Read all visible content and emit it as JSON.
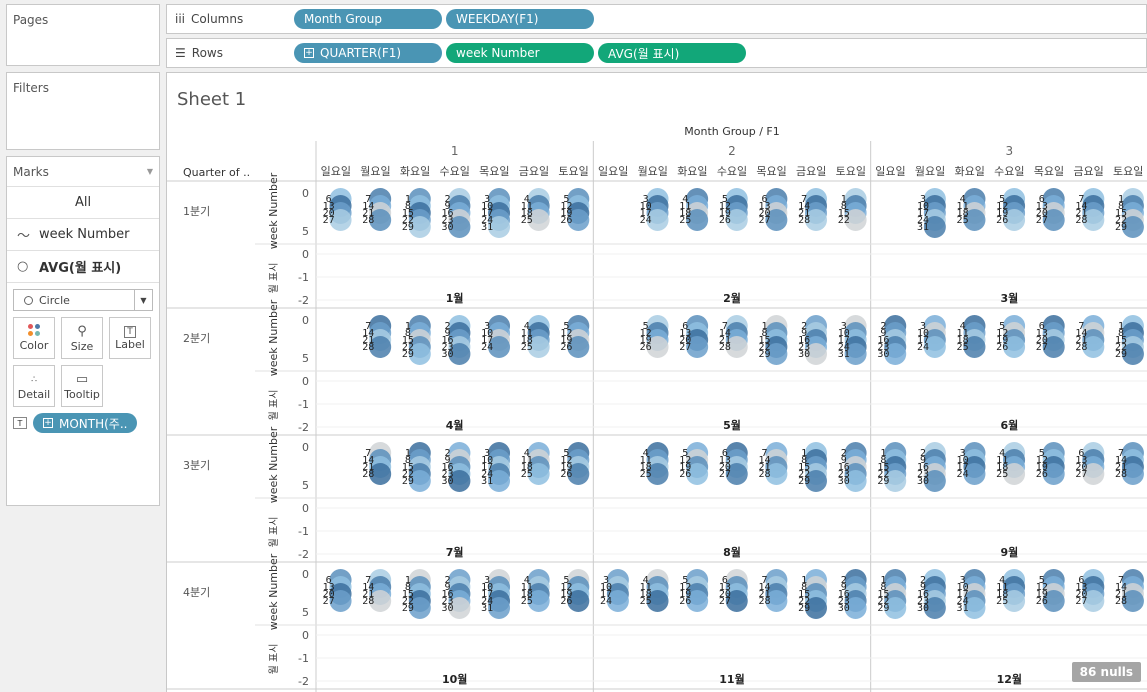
{
  "side": {
    "pages_label": "Pages",
    "filters_label": "Filters",
    "marks_label": "Marks",
    "marks_all": "All",
    "marks_series1": "week Number",
    "marks_series2": "AVG(월 표시)",
    "mark_type": "Circle",
    "buttons": {
      "color": "Color",
      "size": "Size",
      "label": "Label",
      "detail": "Detail",
      "tooltip": "Tooltip"
    },
    "month_pill": "MONTH(주.."
  },
  "shelves": {
    "columns_label": "Columns",
    "rows_label": "Rows",
    "columns": [
      "Month Group",
      "WEEKDAY(F1)"
    ],
    "rows": [
      "QUARTER(F1)",
      "week Number",
      "AVG(월 표시)"
    ]
  },
  "sheet": {
    "title": "Sheet 1",
    "col_header": "Month Group / F1",
    "row_header": "Quarter of ..",
    "groups": [
      "1",
      "2",
      "3"
    ],
    "weekdays": [
      "일요일",
      "월요일",
      "화요일",
      "수요일",
      "목요일",
      "금요일",
      "토요일"
    ],
    "quarters": [
      "1분기",
      "2분기",
      "3분기",
      "4분기"
    ],
    "axis1_title": "week Number",
    "axis2_title": "월 표시",
    "axis1_ticks": [
      "0",
      "5"
    ],
    "axis2_ticks": [
      "0",
      "-1",
      "-2"
    ],
    "months": [
      [
        "1월",
        "2월",
        "3월"
      ],
      [
        "4월",
        "5월",
        "6월"
      ],
      [
        "7월",
        "8월",
        "9월"
      ],
      [
        "10월",
        "11월",
        "12월"
      ]
    ],
    "nulls": "86 nulls"
  },
  "chart_data": {
    "type": "scatter",
    "title": "Sheet 1",
    "xlabel": "Month Group / F1",
    "ylabel": "week Number",
    "cells": [
      {
        "q": 0,
        "g": 0,
        "days": [
          [
            6,
            13,
            20,
            27
          ],
          [
            7,
            14,
            21,
            28
          ],
          [
            1,
            8,
            15,
            22,
            29
          ],
          [
            2,
            9,
            16,
            23,
            30
          ],
          [
            3,
            10,
            17,
            24,
            31
          ],
          [
            4,
            11,
            18,
            25
          ],
          [
            5,
            12,
            19,
            26
          ]
        ]
      },
      {
        "q": 0,
        "g": 1,
        "days": [
          [],
          [
            3,
            10,
            17,
            24
          ],
          [
            4,
            11,
            18,
            25
          ],
          [
            5,
            12,
            19,
            26
          ],
          [
            6,
            13,
            20,
            27
          ],
          [
            7,
            14,
            21,
            28
          ],
          [
            1,
            8,
            15,
            22
          ]
        ]
      },
      {
        "q": 0,
        "g": 2,
        "days": [
          [],
          [
            3,
            10,
            17,
            24,
            31
          ],
          [
            4,
            11,
            18,
            25
          ],
          [
            5,
            12,
            19,
            26
          ],
          [
            6,
            13,
            20,
            27
          ],
          [
            7,
            14,
            21,
            28
          ],
          [
            1,
            8,
            15,
            22,
            29
          ]
        ]
      },
      {
        "q": 1,
        "g": 0,
        "days": [
          [],
          [
            7,
            14,
            21,
            28
          ],
          [
            1,
            8,
            15,
            22,
            29
          ],
          [
            2,
            9,
            16,
            23,
            30
          ],
          [
            3,
            10,
            17,
            24
          ],
          [
            4,
            11,
            18,
            25
          ],
          [
            5,
            12,
            19,
            26
          ]
        ]
      },
      {
        "q": 1,
        "g": 1,
        "days": [
          [],
          [
            5,
            12,
            19,
            26
          ],
          [
            6,
            13,
            20,
            27
          ],
          [
            7,
            14,
            21,
            28
          ],
          [
            1,
            8,
            15,
            22,
            29
          ],
          [
            2,
            9,
            16,
            23,
            30
          ],
          [
            3,
            10,
            17,
            24,
            31
          ]
        ]
      },
      {
        "q": 1,
        "g": 2,
        "days": [
          [
            2,
            9,
            16,
            23,
            30
          ],
          [
            3,
            10,
            17,
            24
          ],
          [
            4,
            11,
            18,
            25
          ],
          [
            5,
            12,
            19,
            26
          ],
          [
            6,
            13,
            20,
            27
          ],
          [
            7,
            14,
            21,
            28
          ],
          [
            1,
            8,
            15,
            22,
            29
          ]
        ]
      },
      {
        "q": 2,
        "g": 0,
        "days": [
          [],
          [
            7,
            14,
            21,
            28
          ],
          [
            1,
            8,
            15,
            22,
            29
          ],
          [
            2,
            9,
            16,
            23,
            30
          ],
          [
            3,
            10,
            17,
            24,
            31
          ],
          [
            4,
            11,
            18,
            25
          ],
          [
            5,
            12,
            19,
            26
          ]
        ]
      },
      {
        "q": 2,
        "g": 1,
        "days": [
          [],
          [
            4,
            11,
            18,
            25
          ],
          [
            5,
            12,
            19,
            26
          ],
          [
            6,
            13,
            20,
            27
          ],
          [
            7,
            14,
            21,
            28
          ],
          [
            1,
            8,
            15,
            22,
            29
          ],
          [
            2,
            9,
            16,
            23,
            30
          ]
        ]
      },
      {
        "q": 2,
        "g": 2,
        "days": [
          [
            1,
            8,
            15,
            22,
            29
          ],
          [
            2,
            9,
            16,
            23,
            30
          ],
          [
            3,
            10,
            17,
            24
          ],
          [
            4,
            11,
            18,
            25
          ],
          [
            5,
            12,
            19,
            26
          ],
          [
            6,
            13,
            20,
            27
          ],
          [
            7,
            14,
            21,
            28
          ]
        ]
      },
      {
        "q": 3,
        "g": 0,
        "days": [
          [
            6,
            13,
            20,
            27
          ],
          [
            7,
            14,
            21,
            28
          ],
          [
            1,
            8,
            15,
            22,
            29
          ],
          [
            2,
            9,
            16,
            23,
            30
          ],
          [
            3,
            10,
            17,
            24,
            31
          ],
          [
            4,
            11,
            18,
            25
          ],
          [
            5,
            12,
            19,
            26
          ]
        ]
      },
      {
        "q": 3,
        "g": 1,
        "days": [
          [
            3,
            10,
            17,
            24
          ],
          [
            4,
            11,
            18,
            25
          ],
          [
            5,
            12,
            19,
            26
          ],
          [
            6,
            13,
            20,
            27
          ],
          [
            7,
            14,
            21,
            28
          ],
          [
            1,
            8,
            15,
            22,
            29
          ],
          [
            2,
            9,
            16,
            23,
            30
          ]
        ]
      },
      {
        "q": 3,
        "g": 2,
        "days": [
          [
            1,
            8,
            15,
            22,
            29
          ],
          [
            2,
            9,
            16,
            23,
            30
          ],
          [
            3,
            10,
            17,
            24,
            31
          ],
          [
            4,
            11,
            18,
            25
          ],
          [
            5,
            12,
            19,
            26
          ],
          [
            6,
            13,
            20,
            27
          ],
          [
            7,
            14,
            21,
            28
          ]
        ]
      }
    ],
    "month_marker_value": -2,
    "axis1_range": [
      0,
      5
    ],
    "axis2_range": [
      -2,
      0
    ]
  },
  "colors": {
    "pill_blue": "#4a95b4",
    "pill_green": "#12a779"
  }
}
